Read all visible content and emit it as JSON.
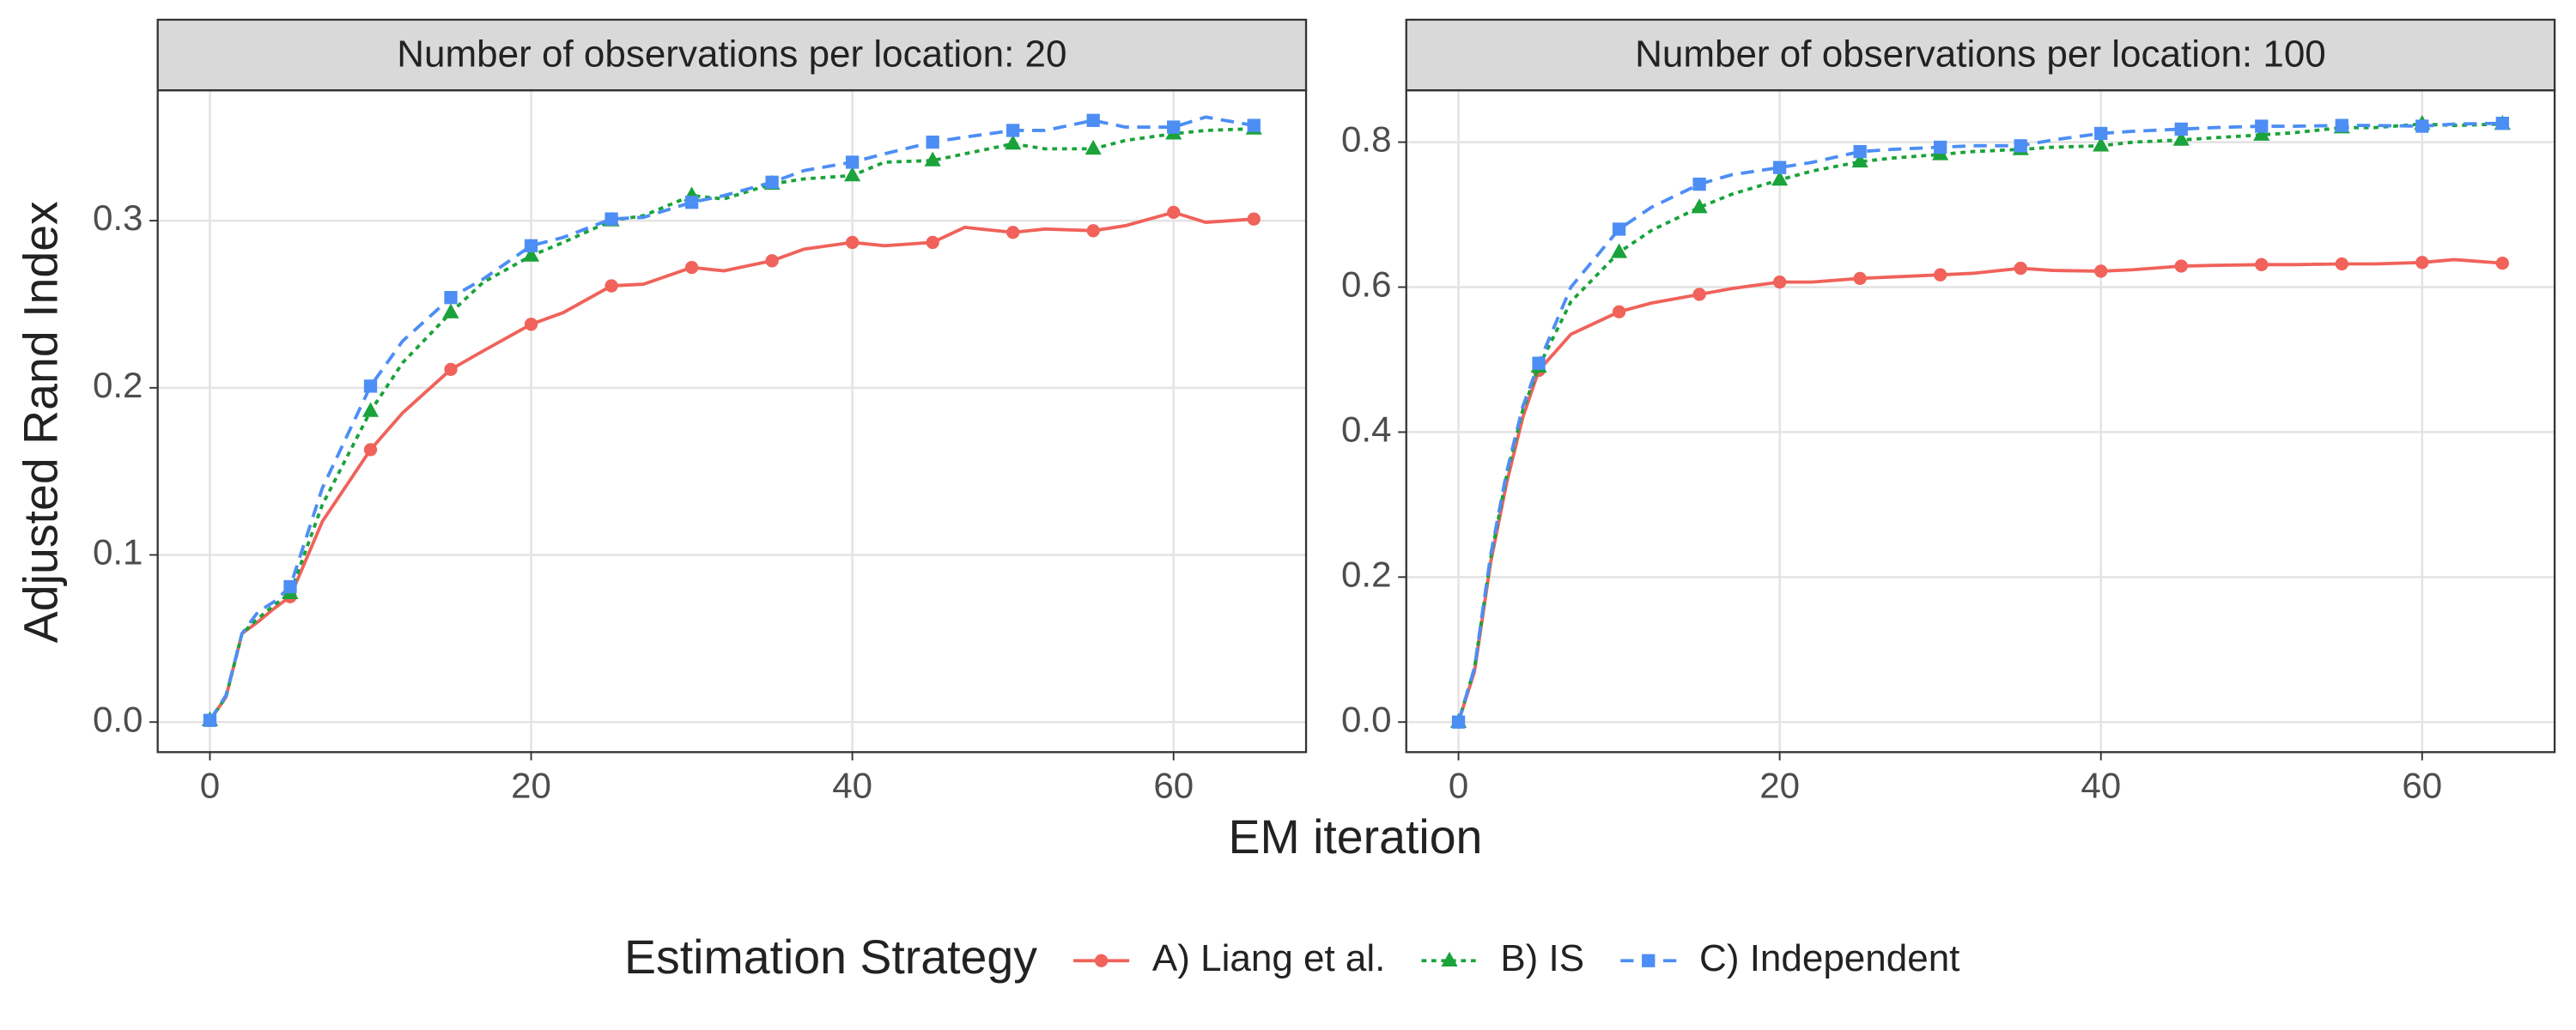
{
  "x_label": "EM iteration",
  "y_label": "Adjusted Rand Index",
  "legend_title": "Estimation Strategy",
  "legend": "bottom",
  "chart_data": [
    {
      "type": "line",
      "title": "Number of observations per location: 20",
      "grid": true,
      "x": [
        0,
        1,
        2,
        3,
        4,
        5,
        7,
        10,
        12,
        15,
        17,
        20,
        22,
        25,
        27,
        30,
        32,
        35,
        37,
        40,
        42,
        45,
        47,
        50,
        52,
        55,
        57,
        60,
        62,
        65
      ],
      "xlim": [
        -3.25,
        68.25
      ],
      "xticks": [
        0,
        20,
        40,
        60
      ],
      "ylim": [
        -0.018,
        0.378
      ],
      "yticks": [
        {
          "value": 0,
          "label": "0.0"
        },
        {
          "value": 0.1,
          "label": "0.1"
        },
        {
          "value": 0.2,
          "label": "0.2"
        },
        {
          "value": 0.3,
          "label": "0.3"
        }
      ],
      "series": [
        {
          "name": "A) Liang et al.",
          "color": "#f0625a",
          "marker": "circle",
          "dash": "solid",
          "values": [
            0.001,
            0.015,
            0.053,
            0.06,
            0.068,
            0.075,
            0.12,
            0.163,
            0.185,
            0.211,
            0.222,
            0.238,
            0.245,
            0.261,
            0.262,
            0.272,
            0.27,
            0.276,
            0.283,
            0.287,
            0.285,
            0.287,
            0.296,
            0.293,
            0.295,
            0.294,
            0.297,
            0.305,
            0.299,
            0.301
          ]
        },
        {
          "name": "B) IS",
          "color": "#1aa33a",
          "marker": "triangle",
          "dash": "dotted",
          "values": [
            0.001,
            0.015,
            0.053,
            0.062,
            0.07,
            0.077,
            0.13,
            0.186,
            0.215,
            0.245,
            0.263,
            0.279,
            0.287,
            0.3,
            0.303,
            0.315,
            0.313,
            0.322,
            0.325,
            0.327,
            0.335,
            0.336,
            0.34,
            0.346,
            0.343,
            0.343,
            0.348,
            0.352,
            0.354,
            0.355
          ]
        },
        {
          "name": "C) Independent",
          "color": "#4d8ef5",
          "marker": "square",
          "dash": "dashed",
          "values": [
            0.001,
            0.016,
            0.053,
            0.066,
            0.072,
            0.081,
            0.14,
            0.201,
            0.228,
            0.254,
            0.265,
            0.285,
            0.29,
            0.301,
            0.302,
            0.311,
            0.315,
            0.323,
            0.33,
            0.335,
            0.34,
            0.347,
            0.35,
            0.354,
            0.354,
            0.36,
            0.356,
            0.356,
            0.362,
            0.357
          ]
        }
      ]
    },
    {
      "type": "line",
      "title": "Number of observations per location: 100",
      "grid": true,
      "x": [
        0,
        1,
        2,
        3,
        4,
        5,
        7,
        10,
        12,
        15,
        17,
        20,
        22,
        25,
        27,
        30,
        32,
        35,
        37,
        40,
        42,
        45,
        47,
        50,
        52,
        55,
        57,
        60,
        62,
        65
      ],
      "xlim": [
        -3.25,
        68.25
      ],
      "xticks": [
        0,
        20,
        40,
        60
      ],
      "ylim": [
        -0.0415,
        0.8715
      ],
      "yticks": [
        {
          "value": 0,
          "label": "0.0"
        },
        {
          "value": 0.2,
          "label": "0.2"
        },
        {
          "value": 0.4,
          "label": "0.4"
        },
        {
          "value": 0.6,
          "label": "0.6"
        },
        {
          "value": 0.8,
          "label": "0.8"
        }
      ],
      "series": [
        {
          "name": "A) Liang et al.",
          "color": "#f0625a",
          "marker": "circle",
          "dash": "solid",
          "values": [
            0.0,
            0.07,
            0.22,
            0.33,
            0.42,
            0.485,
            0.535,
            0.566,
            0.578,
            0.59,
            0.598,
            0.607,
            0.607,
            0.612,
            0.614,
            0.617,
            0.619,
            0.626,
            0.623,
            0.622,
            0.624,
            0.629,
            0.63,
            0.631,
            0.631,
            0.632,
            0.632,
            0.634,
            0.638,
            0.633
          ]
        },
        {
          "name": "B) IS",
          "color": "#1aa33a",
          "marker": "triangle",
          "dash": "dotted",
          "values": [
            0.0,
            0.075,
            0.225,
            0.34,
            0.43,
            0.49,
            0.58,
            0.648,
            0.678,
            0.71,
            0.728,
            0.748,
            0.76,
            0.773,
            0.778,
            0.783,
            0.787,
            0.79,
            0.793,
            0.795,
            0.8,
            0.803,
            0.806,
            0.81,
            0.813,
            0.82,
            0.82,
            0.825,
            0.823,
            0.825
          ]
        },
        {
          "name": "C) Independent",
          "color": "#4d8ef5",
          "marker": "square",
          "dash": "dashed",
          "values": [
            0.0,
            0.075,
            0.23,
            0.345,
            0.435,
            0.495,
            0.6,
            0.68,
            0.71,
            0.742,
            0.755,
            0.765,
            0.772,
            0.787,
            0.79,
            0.793,
            0.795,
            0.795,
            0.803,
            0.812,
            0.815,
            0.818,
            0.82,
            0.822,
            0.822,
            0.823,
            0.823,
            0.822,
            0.825,
            0.826
          ]
        }
      ]
    }
  ]
}
